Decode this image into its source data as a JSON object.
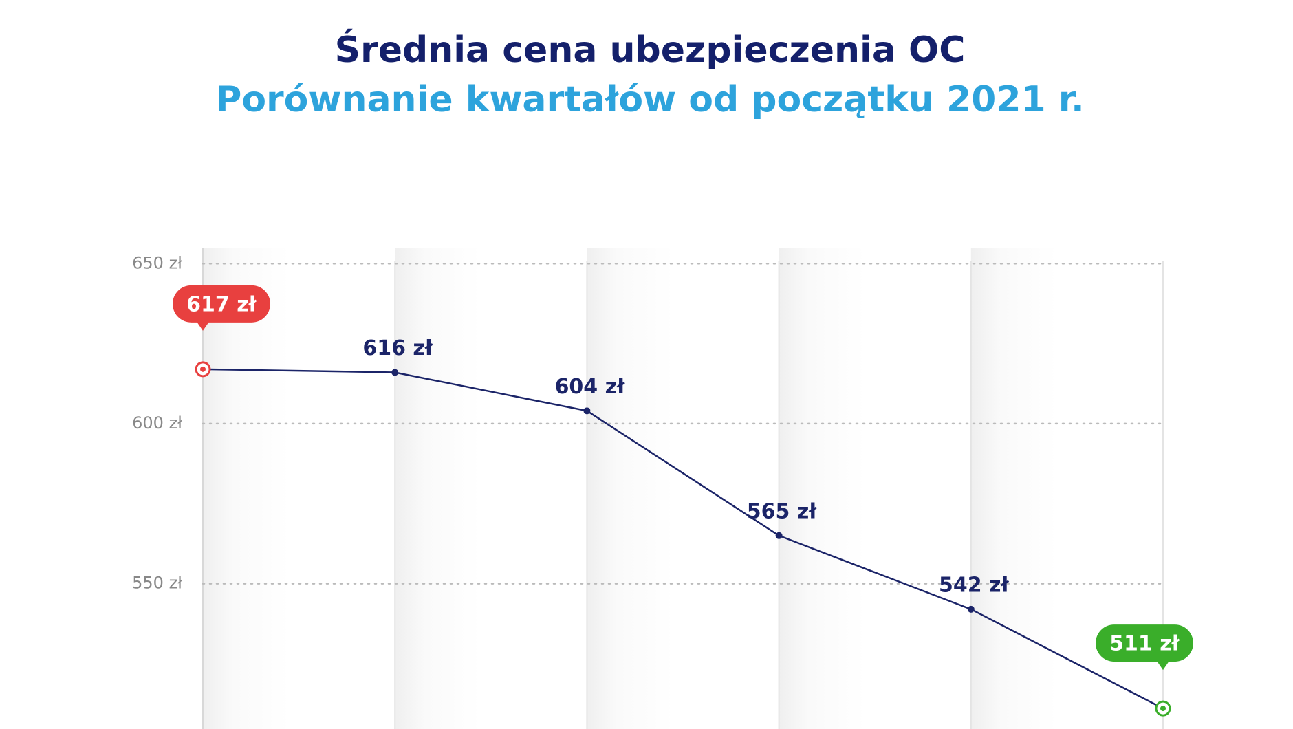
{
  "chart_data": {
    "type": "line",
    "title": "Średnia cena ubezpieczenia OC",
    "subtitle": "Porównanie kwartałów od początku 2021 r.",
    "categories": [
      null,
      null,
      null,
      null,
      null,
      null
    ],
    "series": [
      {
        "color": "#1b2468",
        "values": [
          617,
          616,
          604,
          565,
          542,
          511
        ],
        "value_labels": [
          "617 zł",
          "616 zł",
          "604 zł",
          "565 zł",
          "542 zł",
          "511 zł"
        ]
      }
    ],
    "first_point_color": "#e8403f",
    "last_point_color": "#3aae2a",
    "ylim": [
      505,
      655
    ],
    "yticks": [
      {
        "value": 550,
        "label": "550 zł"
      },
      {
        "value": 600,
        "label": "600 zł"
      },
      {
        "value": 650,
        "label": "650 zł"
      }
    ],
    "grid": true
  }
}
